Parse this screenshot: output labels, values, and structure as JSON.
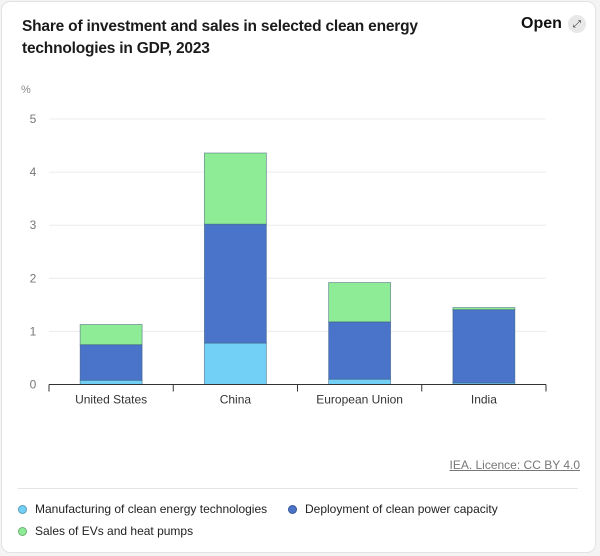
{
  "header": {
    "title": "Share of investment and sales in selected clean energy technologies in GDP, 2023",
    "open_label": "Open",
    "open_icon": "expand-arrows-icon"
  },
  "source": "IEA. Licence: CC BY 4.0",
  "chart_data": {
    "type": "bar",
    "stacked": true,
    "title": "Share of investment and sales in selected clean energy technologies in GDP, 2023",
    "ylabel": "%",
    "xlabel": "",
    "ylim": [
      0,
      5
    ],
    "yticks": [
      "0",
      "1",
      "2",
      "3",
      "4",
      "5"
    ],
    "grid": true,
    "categories": [
      "United States",
      "China",
      "European Union",
      "India"
    ],
    "series": [
      {
        "name": "Manufacturing of clean energy technologies",
        "color": "#72d0f7",
        "values": [
          0.08,
          0.78,
          0.1,
          0.03
        ]
      },
      {
        "name": "Deployment of clean power capacity",
        "color": "#4a74c9",
        "values": [
          0.67,
          2.24,
          1.08,
          1.38
        ]
      },
      {
        "name": "Sales of EVs and heat pumps",
        "color": "#8eec96",
        "values": [
          0.38,
          1.34,
          0.74,
          0.04
        ]
      }
    ],
    "legend_position": "bottom"
  }
}
